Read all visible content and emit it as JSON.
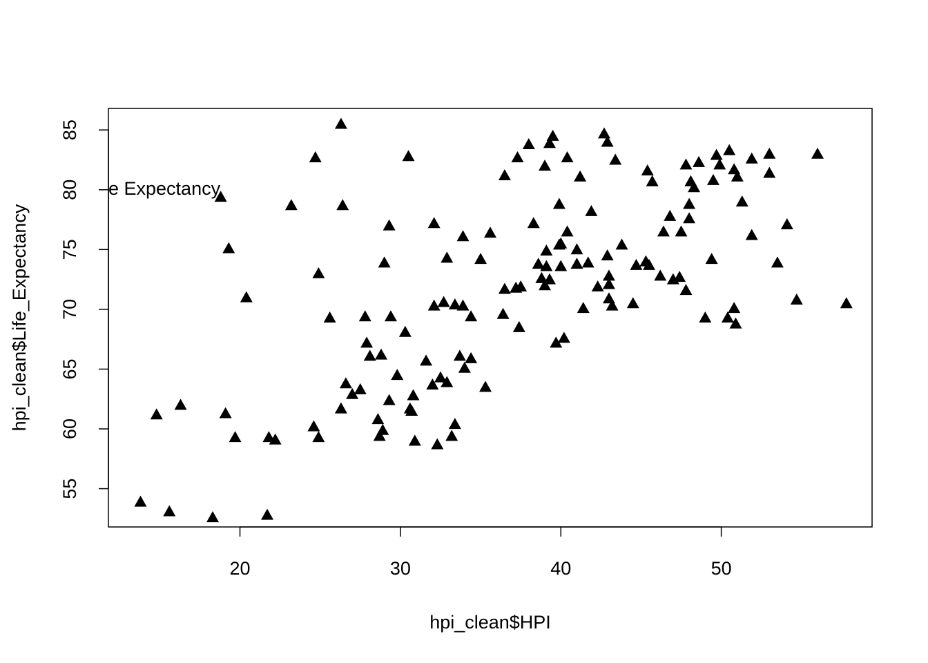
{
  "chart_data": {
    "type": "scatter",
    "title": "",
    "xlabel": "hpi_clean$HPI",
    "ylabel": "hpi_clean$Life_Expectancy",
    "annotation": "e Expectancy",
    "xlim": [
      11.8,
      59.4
    ],
    "ylim": [
      51.8,
      86.8
    ],
    "x_ticks": [
      20,
      30,
      40,
      50
    ],
    "y_ticks": [
      55,
      60,
      65,
      70,
      75,
      80,
      85
    ],
    "marker": "filled-triangle",
    "grid": false,
    "legend": "none",
    "points": [
      [
        13.8,
        53.9
      ],
      [
        15.6,
        53.1
      ],
      [
        18.3,
        52.6
      ],
      [
        21.7,
        52.8
      ],
      [
        14.8,
        61.2
      ],
      [
        16.3,
        62.0
      ],
      [
        19.1,
        61.3
      ],
      [
        19.7,
        59.3
      ],
      [
        21.8,
        59.3
      ],
      [
        22.2,
        59.1
      ],
      [
        18.8,
        79.4
      ],
      [
        19.3,
        75.1
      ],
      [
        20.4,
        71.0
      ],
      [
        23.2,
        78.7
      ],
      [
        24.7,
        82.7
      ],
      [
        26.3,
        85.5
      ],
      [
        26.4,
        78.7
      ],
      [
        24.9,
        73.0
      ],
      [
        25.6,
        69.3
      ],
      [
        24.6,
        60.2
      ],
      [
        24.9,
        59.3
      ],
      [
        26.3,
        61.7
      ],
      [
        26.6,
        63.8
      ],
      [
        27.0,
        62.9
      ],
      [
        27.5,
        63.3
      ],
      [
        27.8,
        69.4
      ],
      [
        27.9,
        67.2
      ],
      [
        28.1,
        66.1
      ],
      [
        28.6,
        60.8
      ],
      [
        28.8,
        66.2
      ],
      [
        28.7,
        59.4
      ],
      [
        28.9,
        59.9
      ],
      [
        29.0,
        73.9
      ],
      [
        29.3,
        77.0
      ],
      [
        29.3,
        62.4
      ],
      [
        29.4,
        69.4
      ],
      [
        29.8,
        64.5
      ],
      [
        30.3,
        68.1
      ],
      [
        30.5,
        82.8
      ],
      [
        30.6,
        61.7
      ],
      [
        30.7,
        61.5
      ],
      [
        30.8,
        62.8
      ],
      [
        30.9,
        59.0
      ],
      [
        31.6,
        65.7
      ],
      [
        32.0,
        63.7
      ],
      [
        32.1,
        77.2
      ],
      [
        32.1,
        70.3
      ],
      [
        32.3,
        58.7
      ],
      [
        32.5,
        64.3
      ],
      [
        32.7,
        70.6
      ],
      [
        32.9,
        63.9
      ],
      [
        32.9,
        74.3
      ],
      [
        33.2,
        59.4
      ],
      [
        33.4,
        60.4
      ],
      [
        33.4,
        70.4
      ],
      [
        33.7,
        66.1
      ],
      [
        33.9,
        76.1
      ],
      [
        33.9,
        70.3
      ],
      [
        34.0,
        65.1
      ],
      [
        34.4,
        65.9
      ],
      [
        34.4,
        69.4
      ],
      [
        35.0,
        74.2
      ],
      [
        35.3,
        63.5
      ],
      [
        35.6,
        76.4
      ],
      [
        36.4,
        69.6
      ],
      [
        36.5,
        71.7
      ],
      [
        36.5,
        81.2
      ],
      [
        37.2,
        71.8
      ],
      [
        37.3,
        82.7
      ],
      [
        37.5,
        71.9
      ],
      [
        37.4,
        68.5
      ],
      [
        38.0,
        83.8
      ],
      [
        38.3,
        77.2
      ],
      [
        38.6,
        73.8
      ],
      [
        38.8,
        72.6
      ],
      [
        39.0,
        82.0
      ],
      [
        39.0,
        72.0
      ],
      [
        39.1,
        74.9
      ],
      [
        39.1,
        73.6
      ],
      [
        39.3,
        83.9
      ],
      [
        39.3,
        72.5
      ],
      [
        39.5,
        84.5
      ],
      [
        39.7,
        67.2
      ],
      [
        39.9,
        75.4
      ],
      [
        39.9,
        78.8
      ],
      [
        40.0,
        75.5
      ],
      [
        40.0,
        73.6
      ],
      [
        40.2,
        67.6
      ],
      [
        40.4,
        76.5
      ],
      [
        40.4,
        82.7
      ],
      [
        41.0,
        75.0
      ],
      [
        41.0,
        73.8
      ],
      [
        41.2,
        81.1
      ],
      [
        41.4,
        70.1
      ],
      [
        41.7,
        73.9
      ],
      [
        41.9,
        78.2
      ],
      [
        42.3,
        71.9
      ],
      [
        42.7,
        84.7
      ],
      [
        42.9,
        84.0
      ],
      [
        42.9,
        74.5
      ],
      [
        43.0,
        72.8
      ],
      [
        43.0,
        72.1
      ],
      [
        43.0,
        70.9
      ],
      [
        43.2,
        70.3
      ],
      [
        43.4,
        82.5
      ],
      [
        43.8,
        75.4
      ],
      [
        44.5,
        70.5
      ],
      [
        44.7,
        73.7
      ],
      [
        45.3,
        74.0
      ],
      [
        45.4,
        81.6
      ],
      [
        45.5,
        73.7
      ],
      [
        45.7,
        80.7
      ],
      [
        46.2,
        72.8
      ],
      [
        46.4,
        76.5
      ],
      [
        46.8,
        77.8
      ],
      [
        47.0,
        72.5
      ],
      [
        47.4,
        72.7
      ],
      [
        47.5,
        76.5
      ],
      [
        47.8,
        71.6
      ],
      [
        47.8,
        82.1
      ],
      [
        48.0,
        78.8
      ],
      [
        48.0,
        77.6
      ],
      [
        48.1,
        80.7
      ],
      [
        48.3,
        80.2
      ],
      [
        48.6,
        82.3
      ],
      [
        49.0,
        69.3
      ],
      [
        49.4,
        74.2
      ],
      [
        49.5,
        80.8
      ],
      [
        49.7,
        82.9
      ],
      [
        49.9,
        82.1
      ],
      [
        50.4,
        69.3
      ],
      [
        50.5,
        83.3
      ],
      [
        50.8,
        81.7
      ],
      [
        50.8,
        70.1
      ],
      [
        50.9,
        68.8
      ],
      [
        51.0,
        81.1
      ],
      [
        51.3,
        79.0
      ],
      [
        51.9,
        76.2
      ],
      [
        51.9,
        82.6
      ],
      [
        53.0,
        83.0
      ],
      [
        53.0,
        81.4
      ],
      [
        53.5,
        73.9
      ],
      [
        54.1,
        77.1
      ],
      [
        54.7,
        70.8
      ],
      [
        56.0,
        83.0
      ],
      [
        57.8,
        70.5
      ]
    ]
  }
}
